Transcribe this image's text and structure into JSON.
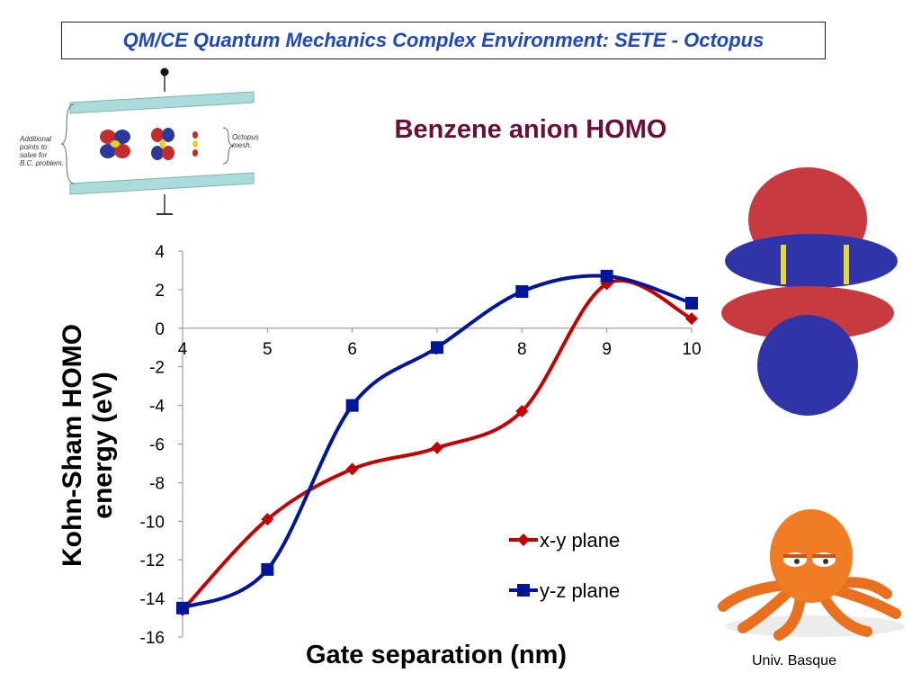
{
  "header": {
    "title": "QM/CE Quantum Mechanics Complex Environment: SETE - Octopus"
  },
  "diagram": {
    "left_note": [
      "Additional",
      "points to",
      "solve for",
      "B.C. problem."
    ],
    "right_note": [
      "Octopus",
      "mesh."
    ]
  },
  "credit": "Univ. Basque",
  "colors": {
    "xy": "#c00000",
    "yz": "#00159a",
    "title": "#6b0f3a",
    "header": "#1f49b8"
  },
  "chart_data": {
    "type": "line",
    "title": "Benzene anion HOMO",
    "xlabel": "Gate separation (nm)",
    "ylabel": "Kohn-Sham HOMO energy (eV)",
    "x": [
      4,
      5,
      6,
      7,
      8,
      9,
      10
    ],
    "xlim": [
      4,
      10
    ],
    "ylim": [
      -16,
      4
    ],
    "yticks": [
      4,
      2,
      0,
      -2,
      -4,
      -6,
      -8,
      -10,
      -12,
      -14,
      -16
    ],
    "xtick_labels": [
      "4",
      "5",
      "6",
      "7",
      "8",
      "9",
      "10"
    ],
    "legend_position": "lower-right",
    "series": [
      {
        "name": "x-y plane",
        "marker": "diamond",
        "color": "#c00000",
        "values": [
          -14.6,
          -9.9,
          -7.3,
          -6.2,
          -4.3,
          2.3,
          0.5
        ]
      },
      {
        "name": "y-z plane",
        "marker": "square",
        "color": "#00159a",
        "values": [
          -14.5,
          -12.5,
          -4.0,
          -1.0,
          1.9,
          2.7,
          1.3
        ]
      }
    ]
  }
}
